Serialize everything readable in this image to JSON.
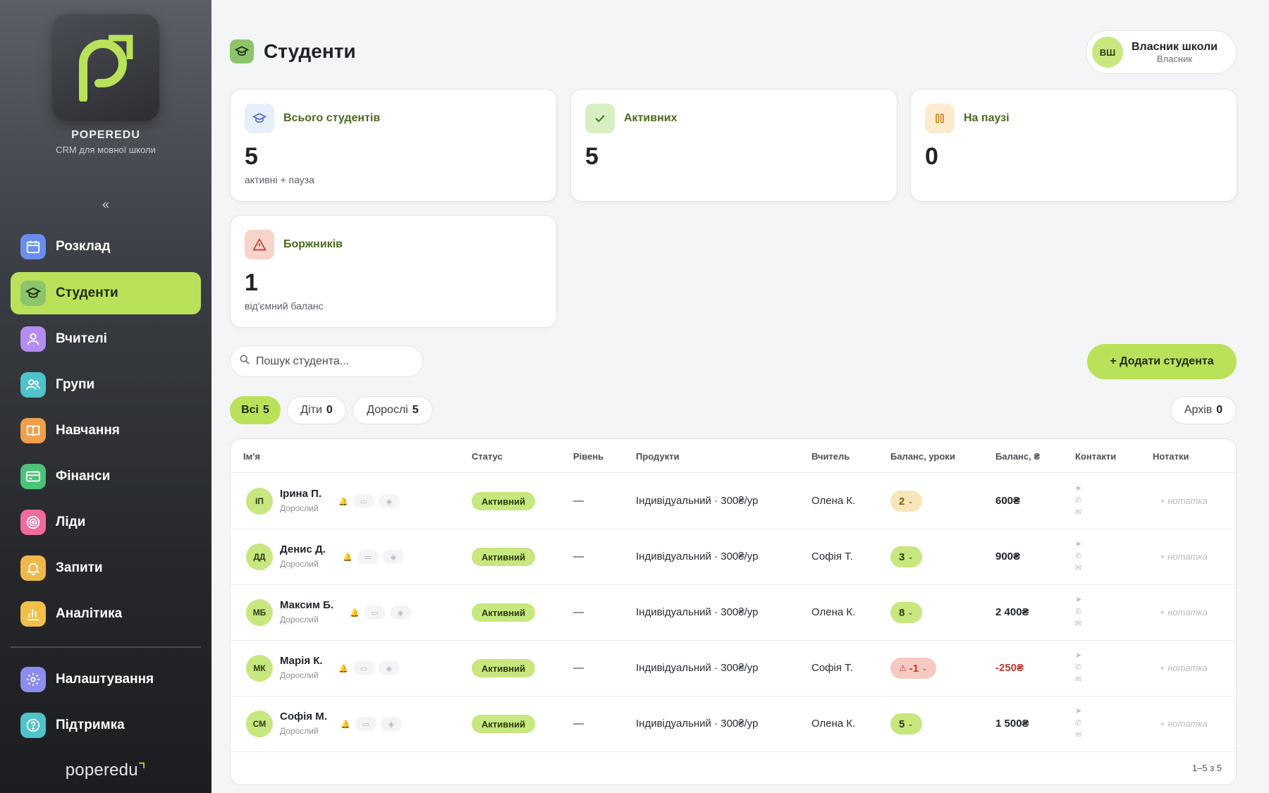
{
  "sidebar": {
    "brand_name": "POPEREDU",
    "brand_sub": "CRM для мовної школи",
    "collapse_label": "«",
    "items": [
      {
        "label": "Розклад",
        "icon": "calendar-icon",
        "color": "#6b8df0"
      },
      {
        "label": "Студенти",
        "icon": "graduation-cap-icon",
        "color": "#8cc46b"
      },
      {
        "label": "Вчителі",
        "icon": "user-icon",
        "color": "#b48df0"
      },
      {
        "label": "Групи",
        "icon": "users-icon",
        "color": "#4fc3c9"
      },
      {
        "label": "Навчання",
        "icon": "book-icon",
        "color": "#f0a04b"
      },
      {
        "label": "Фінанси",
        "icon": "credit-card-icon",
        "color": "#4cc27a"
      },
      {
        "label": "Ліди",
        "icon": "target-icon",
        "color": "#f06b9e"
      },
      {
        "label": "Запити",
        "icon": "bell-icon",
        "color": "#f0b84b"
      },
      {
        "label": "Аналітика",
        "icon": "bar-chart-icon",
        "color": "#f0c04b"
      }
    ],
    "bottom_items": [
      {
        "label": "Налаштування",
        "icon": "gear-icon",
        "color": "#8d8df0"
      },
      {
        "label": "Підтримка",
        "icon": "help-circle-icon",
        "color": "#4fc3c9"
      }
    ],
    "footer_logo": "poperedu"
  },
  "header": {
    "title": "Студенти",
    "user": {
      "initials": "ВШ",
      "name": "Власник школи",
      "role": "Власник"
    }
  },
  "stats": [
    {
      "title": "Всього студентів",
      "value": "5",
      "sub": "активні + пауза",
      "icon": "graduation-cap-icon",
      "color": "#e7eefc"
    },
    {
      "title": "Активних",
      "value": "5",
      "sub": "",
      "icon": "check-icon",
      "color": "#d7efc1"
    },
    {
      "title": "На паузі",
      "value": "0",
      "sub": "",
      "icon": "pause-icon",
      "color": "#fbecd0"
    },
    {
      "title": "Боржників",
      "value": "1",
      "sub": "від'ємний баланс",
      "icon": "alert-triangle-icon",
      "color": "#f7d3cc"
    }
  ],
  "search": {
    "placeholder": "Пошук студента..."
  },
  "add_button": "+ Додати студента",
  "filters": [
    {
      "label": "Всі",
      "count": "5"
    },
    {
      "label": "Діти",
      "count": "0"
    },
    {
      "label": "Дорослі",
      "count": "5"
    }
  ],
  "archive": {
    "label": "Архів",
    "count": "0"
  },
  "table": {
    "columns": [
      "Ім'я",
      "Статус",
      "Рівень",
      "Продукти",
      "Вчитель",
      "Баланс, уроки",
      "Баланс, ₴",
      "Контакти",
      "Нотатки"
    ],
    "rows": [
      {
        "initials": "ІП",
        "name": "Ірина П.",
        "type": "Дорослий",
        "status": "Активний",
        "level": "—",
        "product": "Індивідуальний · 300₴/ур",
        "teacher": "Олена К.",
        "lessons": "2",
        "lessons_state": "warn",
        "money": "600₴",
        "money_state": "normal",
        "note": "+ нотатка"
      },
      {
        "initials": "ДД",
        "name": "Денис Д.",
        "type": "Дорослий",
        "status": "Активний",
        "level": "—",
        "product": "Індивідуальний · 300₴/ур",
        "teacher": "Софія Т.",
        "lessons": "3",
        "lessons_state": "ok",
        "money": "900₴",
        "money_state": "normal",
        "note": "+ нотатка"
      },
      {
        "initials": "МБ",
        "name": "Максим Б.",
        "type": "Дорослий",
        "status": "Активний",
        "level": "—",
        "product": "Індивідуальний · 300₴/ур",
        "teacher": "Олена К.",
        "lessons": "8",
        "lessons_state": "ok",
        "money": "2 400₴",
        "money_state": "normal",
        "note": "+ нотатка"
      },
      {
        "initials": "МК",
        "name": "Марія К.",
        "type": "Дорослий",
        "status": "Активний",
        "level": "—",
        "product": "Індивідуальний · 300₴/ур",
        "teacher": "Софія Т.",
        "lessons": "-1",
        "lessons_state": "neg",
        "money": "-250₴",
        "money_state": "neg",
        "note": "+ нотатка"
      },
      {
        "initials": "СМ",
        "name": "Софія М.",
        "type": "Дорослий",
        "status": "Активний",
        "level": "—",
        "product": "Індивідуальний · 300₴/ур",
        "teacher": "Олена К.",
        "lessons": "5",
        "lessons_state": "ok",
        "money": "1 500₴",
        "money_state": "normal",
        "note": "+ нотатка"
      }
    ],
    "pager": "1–5 з 5"
  }
}
